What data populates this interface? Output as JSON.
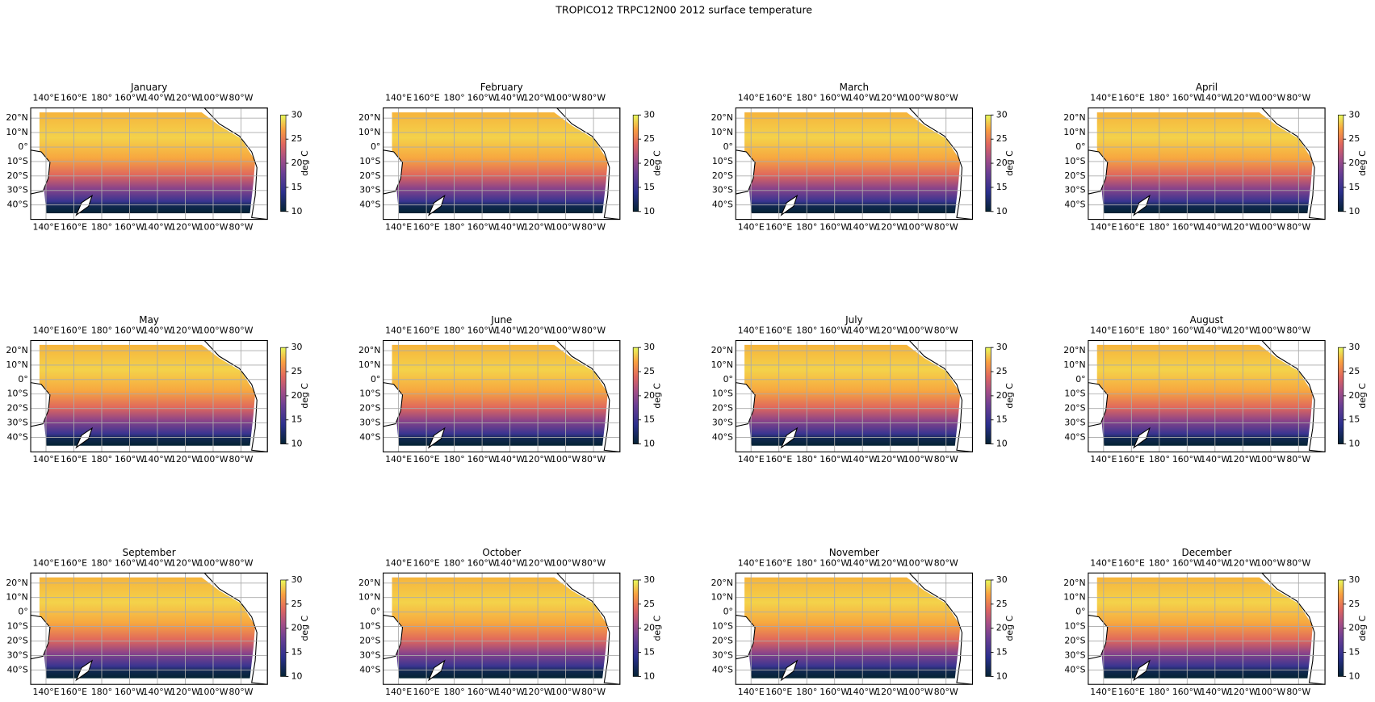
{
  "title": "TROPICO12 TRPC12N00 2012 surface temperature",
  "axes": {
    "xlim": [
      129,
      299
    ],
    "xticks": [
      {
        "value": 140,
        "label": "140°E"
      },
      {
        "value": 160,
        "label": "160°E"
      },
      {
        "value": 180,
        "label": "180°"
      },
      {
        "value": 200,
        "label": "160°W"
      },
      {
        "value": 220,
        "label": "140°W"
      },
      {
        "value": 240,
        "label": "120°W"
      },
      {
        "value": 260,
        "label": "100°W"
      },
      {
        "value": 280,
        "label": "80°W"
      }
    ],
    "ylim": [
      -50,
      27
    ],
    "yticks": [
      {
        "value": 20,
        "label": "20°N"
      },
      {
        "value": 10,
        "label": "10°N"
      },
      0,
      {
        "value": 0,
        "label": "0°"
      },
      {
        "value": -10,
        "label": "10°S"
      },
      {
        "value": -20,
        "label": "20°S"
      },
      {
        "value": -30,
        "label": "30°S"
      },
      {
        "value": -40,
        "label": "40°S"
      }
    ],
    "grid": true
  },
  "colorbar": {
    "label": "deg C",
    "colormap": "thermal",
    "lim": [
      10,
      30
    ],
    "ticks": [
      10,
      15,
      20,
      25,
      30
    ]
  },
  "panels": [
    {
      "title": "January"
    },
    {
      "title": "February"
    },
    {
      "title": "March"
    },
    {
      "title": "April"
    },
    {
      "title": "May"
    },
    {
      "title": "June"
    },
    {
      "title": "July"
    },
    {
      "title": "August"
    },
    {
      "title": "September"
    },
    {
      "title": "October"
    },
    {
      "title": "November"
    },
    {
      "title": "December"
    }
  ]
}
